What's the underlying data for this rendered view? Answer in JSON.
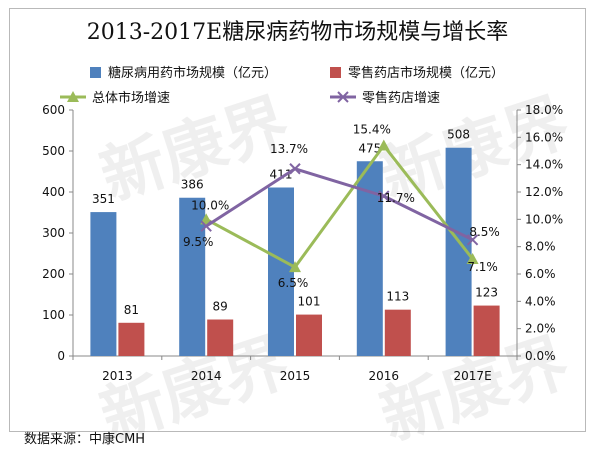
{
  "chart_data": {
    "type": "bar",
    "title": "2013-2017E糖尿病药物市场规模与增长率",
    "categories": [
      "2013",
      "2014",
      "2015",
      "2016",
      "2017E"
    ],
    "bar_series": [
      {
        "name": "糖尿病用药市场规模（亿元）",
        "color": "#4f81bd",
        "values": [
          351,
          386,
          411,
          475,
          508
        ]
      },
      {
        "name": "零售药店市场规模（亿元）",
        "color": "#c0504d",
        "values": [
          81,
          89,
          101,
          113,
          123
        ]
      }
    ],
    "line_series": [
      {
        "name": "总体市场增速",
        "color": "#9bbb59",
        "marker": "triangle",
        "x": [
          "2014",
          "2015",
          "2016",
          "2017E"
        ],
        "values": [
          10.0,
          6.5,
          15.4,
          7.1
        ],
        "labels": [
          "10.0%",
          "6.5%",
          "15.4%",
          "7.1%"
        ]
      },
      {
        "name": "零售药店增速",
        "color": "#8064a2",
        "marker": "x",
        "x": [
          "2014",
          "2015",
          "2016",
          "2017E"
        ],
        "values": [
          9.5,
          13.7,
          11.7,
          8.5
        ],
        "labels": [
          "9.5%",
          "13.7%",
          "11.7%",
          "8.5%"
        ]
      }
    ],
    "y_left": {
      "min": 0,
      "max": 600,
      "ticks": [
        "0",
        "100",
        "200",
        "300",
        "400",
        "500",
        "600"
      ]
    },
    "y_right": {
      "min": 0,
      "max": 18,
      "ticks": [
        "0.0%",
        "2.0%",
        "4.0%",
        "6.0%",
        "8.0%",
        "10.0%",
        "12.0%",
        "14.0%",
        "16.0%",
        "18.0%"
      ]
    },
    "legend_position": "top",
    "grid": false
  },
  "source": "数据来源：中康CMH",
  "watermark": "新康界"
}
